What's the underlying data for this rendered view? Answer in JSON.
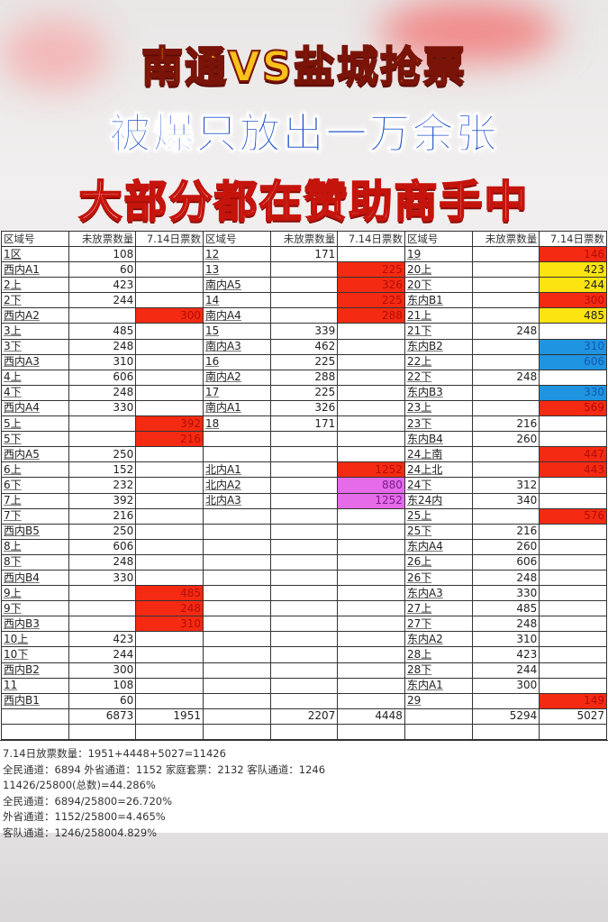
{
  "titles": {
    "line1": "南通VS盐城抢票",
    "line2": "被爆只放出一万余张",
    "line3": "大部分都在赞助商手中"
  },
  "colors": {
    "red": "#f52a12",
    "yellow": "#fbe40f",
    "blue": "#1f94e0",
    "magenta": "#e56be8"
  },
  "table": {
    "headers": [
      "区域号",
      "未放票数量",
      "7.14日票数",
      "区域号",
      "未放票数量",
      "7.14日票数",
      "区域号",
      "未放票数量",
      "7.14日票数"
    ],
    "groups": [
      {
        "rows": [
          [
            "1区",
            "108",
            "",
            ""
          ],
          [
            "西内A1",
            "60",
            "",
            ""
          ],
          [
            "2上",
            "423",
            "",
            ""
          ],
          [
            "2下",
            "244",
            "",
            ""
          ],
          [
            "西内A2",
            "",
            "300",
            "red"
          ],
          [
            "3上",
            "485",
            "",
            ""
          ],
          [
            "3下",
            "248",
            "",
            ""
          ],
          [
            "西内A3",
            "310",
            "",
            ""
          ],
          [
            "4上",
            "606",
            "",
            ""
          ],
          [
            "4下",
            "248",
            "",
            ""
          ],
          [
            "西内A4",
            "330",
            "",
            ""
          ],
          [
            "5上",
            "",
            "392",
            "red"
          ],
          [
            "5下",
            "",
            "216",
            "red"
          ],
          [
            "西内A5",
            "250",
            "",
            ""
          ],
          [
            "6上",
            "152",
            "",
            ""
          ],
          [
            "6下",
            "232",
            "",
            ""
          ],
          [
            "7上",
            "392",
            "",
            ""
          ],
          [
            "7下",
            "216",
            "",
            ""
          ],
          [
            "西内B5",
            "250",
            "",
            ""
          ],
          [
            "8上",
            "606",
            "",
            ""
          ],
          [
            "8下",
            "248",
            "",
            ""
          ],
          [
            "西内B4",
            "330",
            "",
            ""
          ],
          [
            "9上",
            "",
            "485",
            "red"
          ],
          [
            "9下",
            "",
            "248",
            "red"
          ],
          [
            "西内B3",
            "",
            "310",
            "red"
          ],
          [
            "10上",
            "423",
            "",
            ""
          ],
          [
            "10下",
            "244",
            "",
            ""
          ],
          [
            "西内B2",
            "300",
            "",
            ""
          ],
          [
            "11",
            "108",
            "",
            ""
          ],
          [
            "西内B1",
            "60",
            "",
            ""
          ]
        ],
        "total_unreleased": "6873",
        "total_714": "1951"
      },
      {
        "rows": [
          [
            "12",
            "171",
            "",
            ""
          ],
          [
            "13",
            "",
            "225",
            "red"
          ],
          [
            "南内A5",
            "",
            "326",
            "red"
          ],
          [
            "14",
            "",
            "225",
            "red"
          ],
          [
            "南内A4",
            "",
            "288",
            "red"
          ],
          [
            "15",
            "339",
            "",
            ""
          ],
          [
            "南内A3",
            "462",
            "",
            ""
          ],
          [
            "16",
            "225",
            "",
            ""
          ],
          [
            "南内A2",
            "288",
            "",
            ""
          ],
          [
            "17",
            "225",
            "",
            ""
          ],
          [
            "南内A1",
            "326",
            "",
            ""
          ],
          [
            "18",
            "171",
            "",
            ""
          ],
          [
            "",
            "",
            "",
            ""
          ],
          [
            "",
            "",
            "",
            ""
          ],
          [
            "北内A1",
            "",
            "1252",
            "red"
          ],
          [
            "北内A2",
            "",
            "880",
            "magenta"
          ],
          [
            "北内A3",
            "",
            "1252",
            "magenta"
          ],
          [
            "",
            "",
            "",
            ""
          ],
          [
            "",
            "",
            "",
            ""
          ],
          [
            "",
            "",
            "",
            ""
          ],
          [
            "",
            "",
            "",
            ""
          ],
          [
            "",
            "",
            "",
            ""
          ],
          [
            "",
            "",
            "",
            ""
          ],
          [
            "",
            "",
            "",
            ""
          ],
          [
            "",
            "",
            "",
            ""
          ],
          [
            "",
            "",
            "",
            ""
          ],
          [
            "",
            "",
            "",
            ""
          ],
          [
            "",
            "",
            "",
            ""
          ],
          [
            "",
            "",
            "",
            ""
          ],
          [
            "",
            "",
            "",
            ""
          ]
        ],
        "total_unreleased": "2207",
        "total_714": "4448"
      },
      {
        "rows": [
          [
            "19",
            "",
            "146",
            "red"
          ],
          [
            "20上",
            "",
            "423",
            "yellow"
          ],
          [
            "20下",
            "",
            "244",
            "yellow"
          ],
          [
            "东内B1",
            "",
            "300",
            "red"
          ],
          [
            "21上",
            "",
            "485",
            "yellow"
          ],
          [
            "21下",
            "248",
            "",
            ""
          ],
          [
            "东内B2",
            "",
            "310",
            "blue"
          ],
          [
            "22上",
            "",
            "606",
            "blue"
          ],
          [
            "22下",
            "248",
            "",
            ""
          ],
          [
            "东内B3",
            "",
            "330",
            "blue"
          ],
          [
            "23上",
            "",
            "569",
            "red"
          ],
          [
            "23下",
            "216",
            "",
            ""
          ],
          [
            "东内B4",
            "260",
            "",
            ""
          ],
          [
            "24上南",
            "",
            "447",
            "red"
          ],
          [
            "24上北",
            "",
            "443",
            "red"
          ],
          [
            "24下",
            "312",
            "",
            ""
          ],
          [
            "东24内",
            "340",
            "",
            ""
          ],
          [
            "25上",
            "",
            "576",
            "red"
          ],
          [
            "25下",
            "216",
            "",
            ""
          ],
          [
            "东内A4",
            "260",
            "",
            ""
          ],
          [
            "26上",
            "606",
            "",
            ""
          ],
          [
            "26下",
            "248",
            "",
            ""
          ],
          [
            "东内A3",
            "330",
            "",
            ""
          ],
          [
            "27上",
            "485",
            "",
            ""
          ],
          [
            "27下",
            "248",
            "",
            ""
          ],
          [
            "东内A2",
            "310",
            "",
            ""
          ],
          [
            "28上",
            "423",
            "",
            ""
          ],
          [
            "28下",
            "244",
            "",
            ""
          ],
          [
            "东内A1",
            "300",
            "",
            ""
          ],
          [
            "29",
            "",
            "149",
            "red"
          ]
        ],
        "total_unreleased": "5294",
        "total_714": "5027"
      }
    ]
  },
  "notes": [
    "7.14日放票数量：1951+4448+5027=11426",
    "全民通道：6894  外省通道：1152 家庭套票：2132  客队通道：1246",
    "11426/25800(总数)=44.286%",
    "全民通道：6894/25800=26.720%",
    "外省通道：1152/25800=4.465%",
    "客队通道：1246/258004.829%"
  ]
}
